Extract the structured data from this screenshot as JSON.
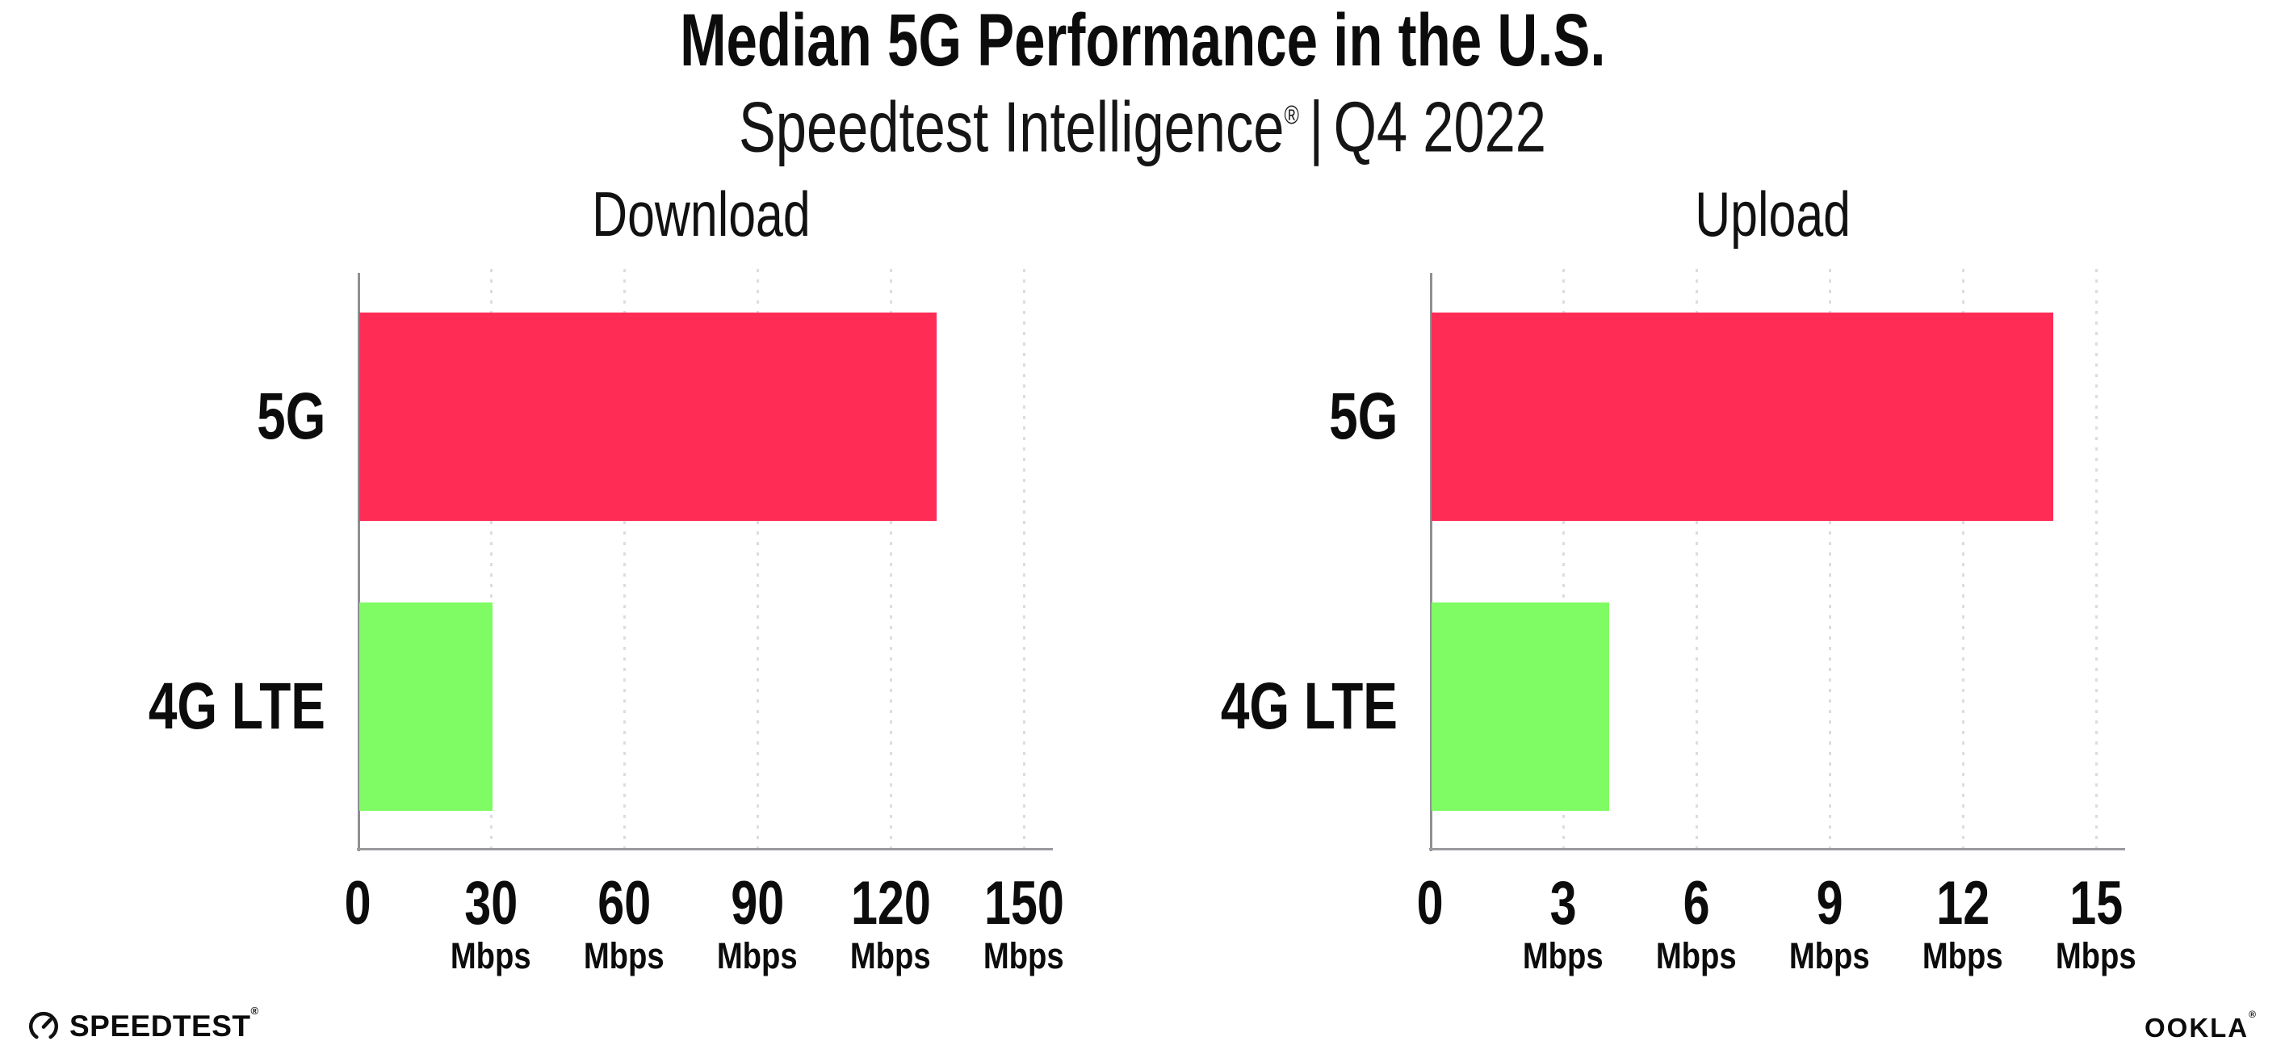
{
  "title": "Median 5G Performance in the U.S.",
  "subtitle": {
    "product": "Speedtest Intelligence",
    "registered_mark": "®",
    "separator": "|",
    "period": "Q4 2022"
  },
  "chart_data": [
    {
      "type": "bar",
      "orientation": "horizontal",
      "title": "Download",
      "categories": [
        "5G",
        "4G LTE"
      ],
      "values": [
        130,
        30
      ],
      "unit": "Mbps",
      "xticks": [
        0,
        30,
        60,
        90,
        120,
        150
      ],
      "xlim": [
        0,
        155
      ],
      "bar_colors": [
        "#FF2D55",
        "#7FFB63"
      ],
      "grid": "vertical-dotted",
      "legend": "none"
    },
    {
      "type": "bar",
      "orientation": "horizontal",
      "title": "Upload",
      "categories": [
        "5G",
        "4G LTE"
      ],
      "values": [
        14,
        4
      ],
      "unit": "Mbps",
      "xticks": [
        0,
        3,
        6,
        9,
        12,
        15
      ],
      "xlim": [
        0,
        15.5
      ],
      "bar_colors": [
        "#FF2D55",
        "#7FFB63"
      ],
      "grid": "vertical-dotted",
      "legend": "none"
    }
  ],
  "footer": {
    "speedtest_wordmark": "SPEEDTEST",
    "speedtest_mark": "®",
    "ookla_wordmark": "OOKLA",
    "ookla_mark": "®"
  },
  "colors": {
    "bar_5g": "#FF2D55",
    "bar_4g_lte": "#7FFB63",
    "axis": "#8F8F94",
    "gridline": "#DCDCE6",
    "text": "#0C0C0C",
    "background": "#FFFFFF"
  }
}
